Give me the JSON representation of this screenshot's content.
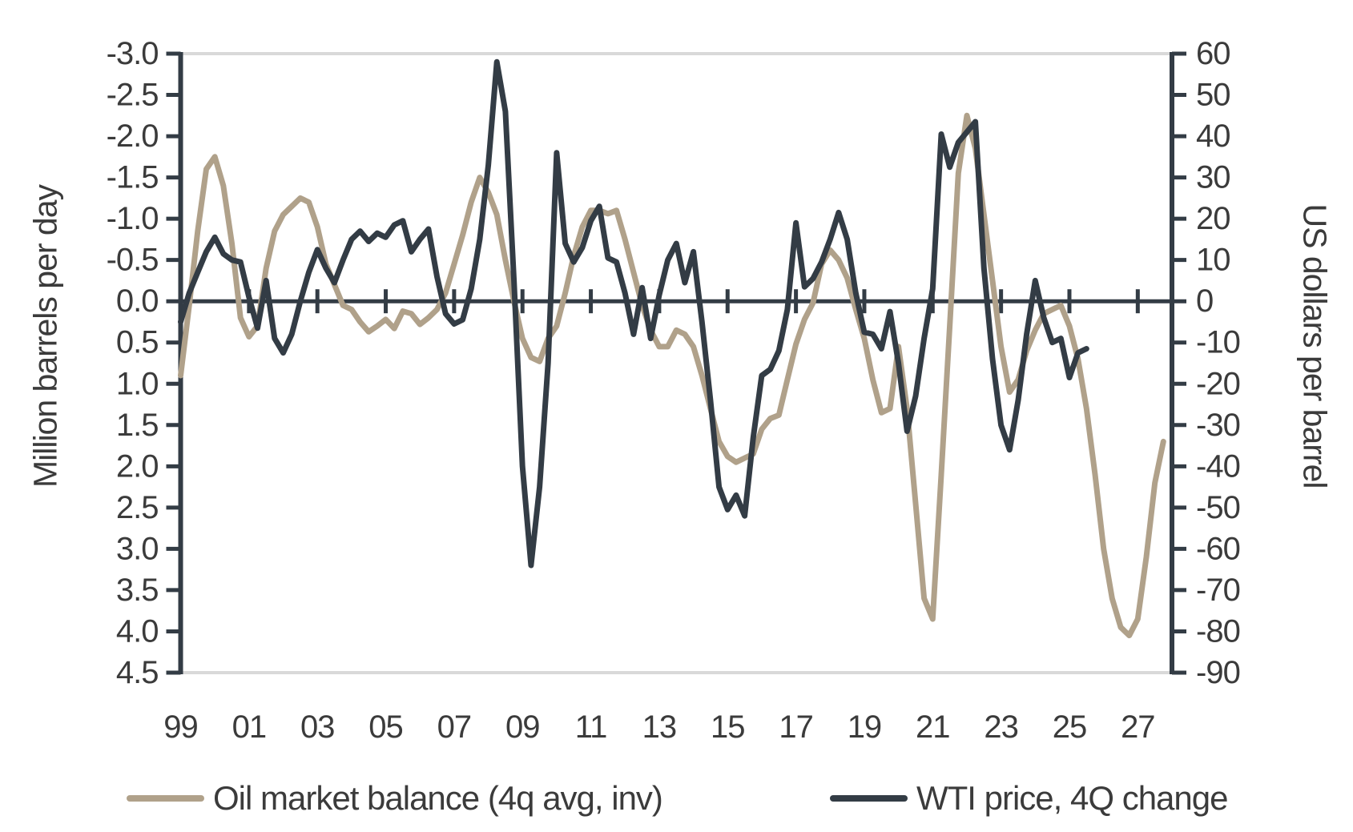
{
  "chart_data": {
    "type": "line",
    "title": "",
    "grid": "horizontal gridlines at top (-3.0 / 60) and bottom (4.5 / -90) only, plus emphasized zero line",
    "legend_position": "bottom",
    "x_axis": {
      "range": [
        1999,
        2028
      ],
      "label_years": [
        1999,
        2001,
        2003,
        2005,
        2007,
        2009,
        2011,
        2013,
        2015,
        2017,
        2019,
        2021,
        2023,
        2025,
        2027
      ],
      "labels": [
        "99",
        "01",
        "03",
        "05",
        "07",
        "09",
        "11",
        "13",
        "15",
        "17",
        "19",
        "21",
        "23",
        "25",
        "27"
      ],
      "zero_line_tick_years": [
        2001,
        2003,
        2005,
        2007,
        2009,
        2011,
        2013,
        2015,
        2017,
        2019,
        2021,
        2023,
        2025,
        2027
      ]
    },
    "y_left": {
      "title": "Million barrels per day",
      "range": [
        -3.0,
        4.5
      ],
      "inverted": true,
      "tick_labels": [
        "-3.0",
        "-2.5",
        "-2.0",
        "-1.5",
        "-1.0",
        "-0.5",
        "0.0",
        "0.5",
        "1.0",
        "1.5",
        "2.0",
        "2.5",
        "3.0",
        "3.5",
        "4.0",
        "4.5"
      ]
    },
    "y_right": {
      "title": "US dollars per barrel",
      "range": [
        60,
        -90
      ],
      "tick_labels": [
        "60",
        "50",
        "40",
        "30",
        "20",
        "10",
        "0",
        "-10",
        "-20",
        "-30",
        "-40",
        "-50",
        "-60",
        "-70",
        "-80",
        "-90"
      ]
    },
    "series": [
      {
        "name": "Oil market balance (4q avg, inv)",
        "axis": "left",
        "color": "#b0a18a",
        "stroke_width": 7,
        "points": [
          [
            1999.0,
            0.9
          ],
          [
            1999.25,
            0.05
          ],
          [
            1999.5,
            -0.85
          ],
          [
            1999.75,
            -1.6
          ],
          [
            2000.0,
            -1.75
          ],
          [
            2000.25,
            -1.4
          ],
          [
            2000.5,
            -0.7
          ],
          [
            2000.75,
            0.2
          ],
          [
            2001.0,
            0.43
          ],
          [
            2001.25,
            0.3
          ],
          [
            2001.5,
            -0.4
          ],
          [
            2001.75,
            -0.85
          ],
          [
            2002.0,
            -1.05
          ],
          [
            2002.25,
            -1.15
          ],
          [
            2002.5,
            -1.25
          ],
          [
            2002.75,
            -1.2
          ],
          [
            2003.0,
            -0.9
          ],
          [
            2003.25,
            -0.45
          ],
          [
            2003.5,
            -0.2
          ],
          [
            2003.75,
            0.05
          ],
          [
            2004.0,
            0.1
          ],
          [
            2004.25,
            0.25
          ],
          [
            2004.5,
            0.37
          ],
          [
            2004.75,
            0.3
          ],
          [
            2005.0,
            0.22
          ],
          [
            2005.25,
            0.33
          ],
          [
            2005.5,
            0.12
          ],
          [
            2005.75,
            0.15
          ],
          [
            2006.0,
            0.28
          ],
          [
            2006.25,
            0.2
          ],
          [
            2006.5,
            0.1
          ],
          [
            2006.75,
            -0.1
          ],
          [
            2007.0,
            -0.45
          ],
          [
            2007.25,
            -0.8
          ],
          [
            2007.5,
            -1.2
          ],
          [
            2007.75,
            -1.5
          ],
          [
            2008.0,
            -1.32
          ],
          [
            2008.25,
            -1.05
          ],
          [
            2008.5,
            -0.5
          ],
          [
            2008.75,
            0.0
          ],
          [
            2009.0,
            0.45
          ],
          [
            2009.25,
            0.68
          ],
          [
            2009.5,
            0.73
          ],
          [
            2009.75,
            0.45
          ],
          [
            2010.0,
            0.3
          ],
          [
            2010.25,
            -0.1
          ],
          [
            2010.5,
            -0.55
          ],
          [
            2010.75,
            -0.9
          ],
          [
            2011.0,
            -1.1
          ],
          [
            2011.25,
            -1.1
          ],
          [
            2011.5,
            -1.06
          ],
          [
            2011.75,
            -1.1
          ],
          [
            2012.0,
            -0.75
          ],
          [
            2012.25,
            -0.35
          ],
          [
            2012.5,
            0.05
          ],
          [
            2012.75,
            0.35
          ],
          [
            2013.0,
            0.55
          ],
          [
            2013.25,
            0.55
          ],
          [
            2013.5,
            0.35
          ],
          [
            2013.75,
            0.4
          ],
          [
            2014.0,
            0.55
          ],
          [
            2014.25,
            0.9
          ],
          [
            2014.5,
            1.3
          ],
          [
            2014.75,
            1.7
          ],
          [
            2015.0,
            1.88
          ],
          [
            2015.25,
            1.95
          ],
          [
            2015.5,
            1.9
          ],
          [
            2015.75,
            1.85
          ],
          [
            2016.0,
            1.55
          ],
          [
            2016.25,
            1.42
          ],
          [
            2016.5,
            1.38
          ],
          [
            2016.75,
            0.95
          ],
          [
            2017.0,
            0.52
          ],
          [
            2017.25,
            0.22
          ],
          [
            2017.5,
            0.02
          ],
          [
            2017.75,
            -0.45
          ],
          [
            2018.0,
            -0.62
          ],
          [
            2018.25,
            -0.5
          ],
          [
            2018.5,
            -0.28
          ],
          [
            2018.75,
            0.1
          ],
          [
            2019.0,
            0.45
          ],
          [
            2019.25,
            0.95
          ],
          [
            2019.5,
            1.35
          ],
          [
            2019.75,
            1.3
          ],
          [
            2020.0,
            0.55
          ],
          [
            2020.25,
            1.3
          ],
          [
            2020.5,
            2.45
          ],
          [
            2020.75,
            3.6
          ],
          [
            2021.0,
            3.85
          ],
          [
            2021.25,
            2.1
          ],
          [
            2021.5,
            0.3
          ],
          [
            2021.75,
            -1.55
          ],
          [
            2022.0,
            -2.25
          ],
          [
            2022.25,
            -1.85
          ],
          [
            2022.5,
            -1.05
          ],
          [
            2022.75,
            -0.25
          ],
          [
            2023.0,
            0.55
          ],
          [
            2023.25,
            1.1
          ],
          [
            2023.5,
            0.95
          ],
          [
            2023.75,
            0.6
          ],
          [
            2024.0,
            0.35
          ],
          [
            2024.25,
            0.15
          ],
          [
            2024.5,
            0.1
          ],
          [
            2024.75,
            0.05
          ],
          [
            2025.0,
            0.3
          ],
          [
            2025.25,
            0.7
          ],
          [
            2025.5,
            1.3
          ],
          [
            2025.75,
            2.1
          ],
          [
            2026.0,
            3.0
          ],
          [
            2026.25,
            3.6
          ],
          [
            2026.5,
            3.95
          ],
          [
            2026.75,
            4.05
          ],
          [
            2027.0,
            3.85
          ],
          [
            2027.25,
            3.1
          ],
          [
            2027.5,
            2.2
          ],
          [
            2027.75,
            1.7
          ]
        ]
      },
      {
        "name": "WTI price, 4Q change",
        "axis": "right",
        "color": "#333c45",
        "stroke_width": 7,
        "points": [
          [
            1999.0,
            -5
          ],
          [
            1999.25,
            2
          ],
          [
            1999.5,
            7
          ],
          [
            1999.75,
            12
          ],
          [
            2000.0,
            15.5
          ],
          [
            2000.25,
            11.5
          ],
          [
            2000.5,
            10
          ],
          [
            2000.75,
            9.5
          ],
          [
            2001.0,
            1
          ],
          [
            2001.25,
            -6.5
          ],
          [
            2001.5,
            5
          ],
          [
            2001.75,
            -9
          ],
          [
            2002.0,
            -12.5
          ],
          [
            2002.25,
            -8
          ],
          [
            2002.5,
            0
          ],
          [
            2002.75,
            7
          ],
          [
            2003.0,
            12.5
          ],
          [
            2003.25,
            8
          ],
          [
            2003.5,
            4.5
          ],
          [
            2003.75,
            10
          ],
          [
            2004.0,
            15
          ],
          [
            2004.25,
            17
          ],
          [
            2004.5,
            14.5
          ],
          [
            2004.75,
            16.5
          ],
          [
            2005.0,
            15.5
          ],
          [
            2005.25,
            18.5
          ],
          [
            2005.5,
            19.5
          ],
          [
            2005.75,
            12
          ],
          [
            2006.0,
            15
          ],
          [
            2006.25,
            17.5
          ],
          [
            2006.5,
            6
          ],
          [
            2006.75,
            -3
          ],
          [
            2007.0,
            -5.5
          ],
          [
            2007.25,
            -4.5
          ],
          [
            2007.5,
            3
          ],
          [
            2007.75,
            15
          ],
          [
            2008.0,
            33
          ],
          [
            2008.25,
            58
          ],
          [
            2008.5,
            46
          ],
          [
            2008.75,
            5
          ],
          [
            2009.0,
            -40
          ],
          [
            2009.25,
            -64
          ],
          [
            2009.5,
            -45
          ],
          [
            2009.75,
            -15
          ],
          [
            2010.0,
            36
          ],
          [
            2010.25,
            14
          ],
          [
            2010.5,
            9.5
          ],
          [
            2010.75,
            13
          ],
          [
            2011.0,
            19.5
          ],
          [
            2011.25,
            23
          ],
          [
            2011.5,
            10.5
          ],
          [
            2011.75,
            9.5
          ],
          [
            2012.0,
            2
          ],
          [
            2012.25,
            -8
          ],
          [
            2012.5,
            3.3
          ],
          [
            2012.75,
            -9
          ],
          [
            2013.0,
            1.5
          ],
          [
            2013.25,
            10
          ],
          [
            2013.5,
            14
          ],
          [
            2013.75,
            4.5
          ],
          [
            2014.0,
            12
          ],
          [
            2014.25,
            -5
          ],
          [
            2014.5,
            -24
          ],
          [
            2014.75,
            -45
          ],
          [
            2015.0,
            -50.5
          ],
          [
            2015.25,
            -47
          ],
          [
            2015.5,
            -52
          ],
          [
            2015.75,
            -33
          ],
          [
            2016.0,
            -18
          ],
          [
            2016.25,
            -16.5
          ],
          [
            2016.5,
            -12
          ],
          [
            2016.75,
            -2
          ],
          [
            2017.0,
            19
          ],
          [
            2017.25,
            3.5
          ],
          [
            2017.5,
            5.5
          ],
          [
            2017.75,
            9.5
          ],
          [
            2018.0,
            15
          ],
          [
            2018.25,
            21.5
          ],
          [
            2018.5,
            15
          ],
          [
            2018.75,
            2
          ],
          [
            2019.0,
            -7.5
          ],
          [
            2019.25,
            -8
          ],
          [
            2019.5,
            -11.5
          ],
          [
            2019.75,
            -2.5
          ],
          [
            2020.0,
            -15
          ],
          [
            2020.25,
            -31.5
          ],
          [
            2020.5,
            -23
          ],
          [
            2020.75,
            -9
          ],
          [
            2021.0,
            3
          ],
          [
            2021.25,
            40.5
          ],
          [
            2021.5,
            32.5
          ],
          [
            2021.75,
            38.5
          ],
          [
            2022.0,
            41
          ],
          [
            2022.25,
            43.5
          ],
          [
            2022.5,
            8
          ],
          [
            2022.75,
            -14
          ],
          [
            2023.0,
            -30
          ],
          [
            2023.25,
            -36
          ],
          [
            2023.5,
            -24
          ],
          [
            2023.75,
            -8
          ],
          [
            2024.0,
            5
          ],
          [
            2024.25,
            -4
          ],
          [
            2024.5,
            -10
          ],
          [
            2024.75,
            -9
          ],
          [
            2025.0,
            -18.5
          ],
          [
            2025.25,
            -12.5
          ],
          [
            2025.5,
            -11.5
          ]
        ]
      }
    ]
  },
  "legend": {
    "items": [
      {
        "label": "Oil market balance (4q avg, inv)",
        "color": "#b0a18a"
      },
      {
        "label": "WTI price, 4Q change",
        "color": "#333c45"
      }
    ]
  },
  "colors": {
    "background": "#ffffff",
    "axis_dark": "#333c45",
    "gridline_gray": "#d9d9d9",
    "text": "#3b3b3b",
    "series_oil_balance": "#b0a18a",
    "series_wti": "#333c45"
  }
}
